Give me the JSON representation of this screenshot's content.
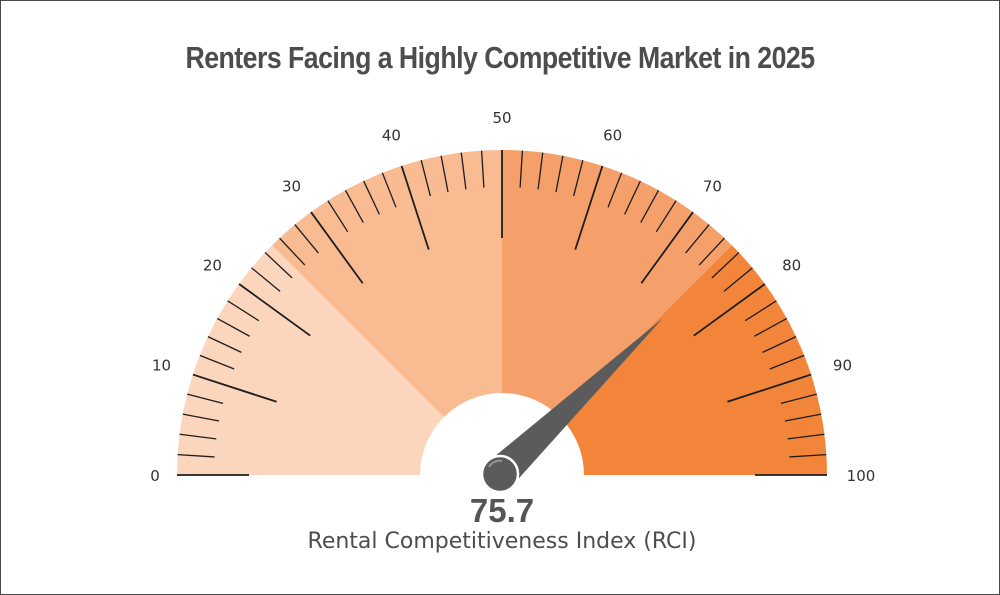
{
  "title": "Renters Facing a Highly Competitive Market in 2025",
  "chart_data": {
    "type": "gauge",
    "title": "Renters Facing a Highly Competitive Market in 2025",
    "value": 75.7,
    "value_label": "75.7",
    "label": "Rental Competitiveness Index (RCI)",
    "range": [
      0,
      100
    ],
    "major_tick_step": 10,
    "minor_tick_step": 2,
    "tick_labels": [
      "0",
      "10",
      "20",
      "30",
      "40",
      "50",
      "60",
      "70",
      "80",
      "90",
      "100"
    ],
    "bands": [
      {
        "from": 0,
        "to": 25,
        "color": "#fbd5bc"
      },
      {
        "from": 25,
        "to": 50,
        "color": "#f8bb92"
      },
      {
        "from": 50,
        "to": 75,
        "color": "#f5a06b"
      },
      {
        "from": 75,
        "to": 100,
        "color": "#f2853a"
      }
    ],
    "needle_color": "#5b5b5b"
  }
}
